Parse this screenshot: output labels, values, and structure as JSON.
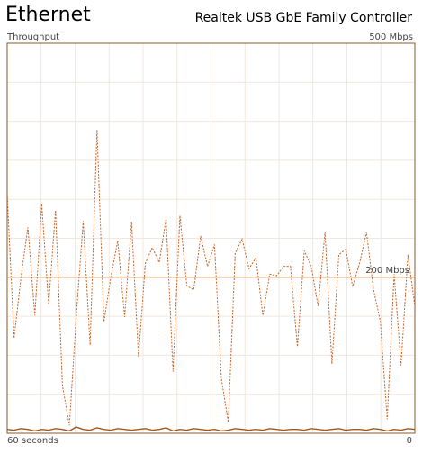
{
  "chart_data": {
    "type": "line",
    "title": "Ethernet",
    "subtitle": "Realtek USB GbE Family Controller",
    "ylabel": "Throughput",
    "xlabel_start": "60 seconds",
    "xlabel_end": "0",
    "ylim": [
      0,
      500
    ],
    "yticks": [
      {
        "value": 500,
        "label": "500 Mbps"
      },
      {
        "value": 200,
        "label": "200 Mbps"
      }
    ],
    "series": [
      {
        "color": "#c8652a",
        "dashed": true,
        "values": [
          307,
          122,
          200,
          264,
          151,
          294,
          165,
          286,
          61,
          10,
          150,
          272,
          113,
          389,
          143,
          200,
          247,
          149,
          271,
          98,
          218,
          238,
          219,
          275,
          79,
          279,
          189,
          184,
          253,
          214,
          242,
          70,
          14,
          231,
          249,
          211,
          225,
          151,
          204,
          202,
          214,
          214,
          111,
          234,
          214,
          163,
          258,
          89,
          229,
          236,
          188,
          218,
          258,
          185,
          144,
          18,
          204,
          87,
          229,
          163
        ]
      },
      {
        "color": "#a0581e",
        "dashed": false,
        "values": [
          5,
          4,
          6,
          5,
          3,
          5,
          4,
          6,
          5,
          3,
          8,
          5,
          4,
          7,
          5,
          4,
          6,
          5,
          4,
          5,
          6,
          4,
          5,
          7,
          3,
          5,
          4,
          6,
          5,
          4,
          5,
          3,
          4,
          6,
          5,
          4,
          5,
          4,
          6,
          5,
          4,
          5,
          5,
          4,
          6,
          5,
          4,
          5,
          6,
          4,
          5,
          5,
          4,
          6,
          5,
          3,
          5,
          4,
          6,
          5
        ]
      }
    ]
  }
}
